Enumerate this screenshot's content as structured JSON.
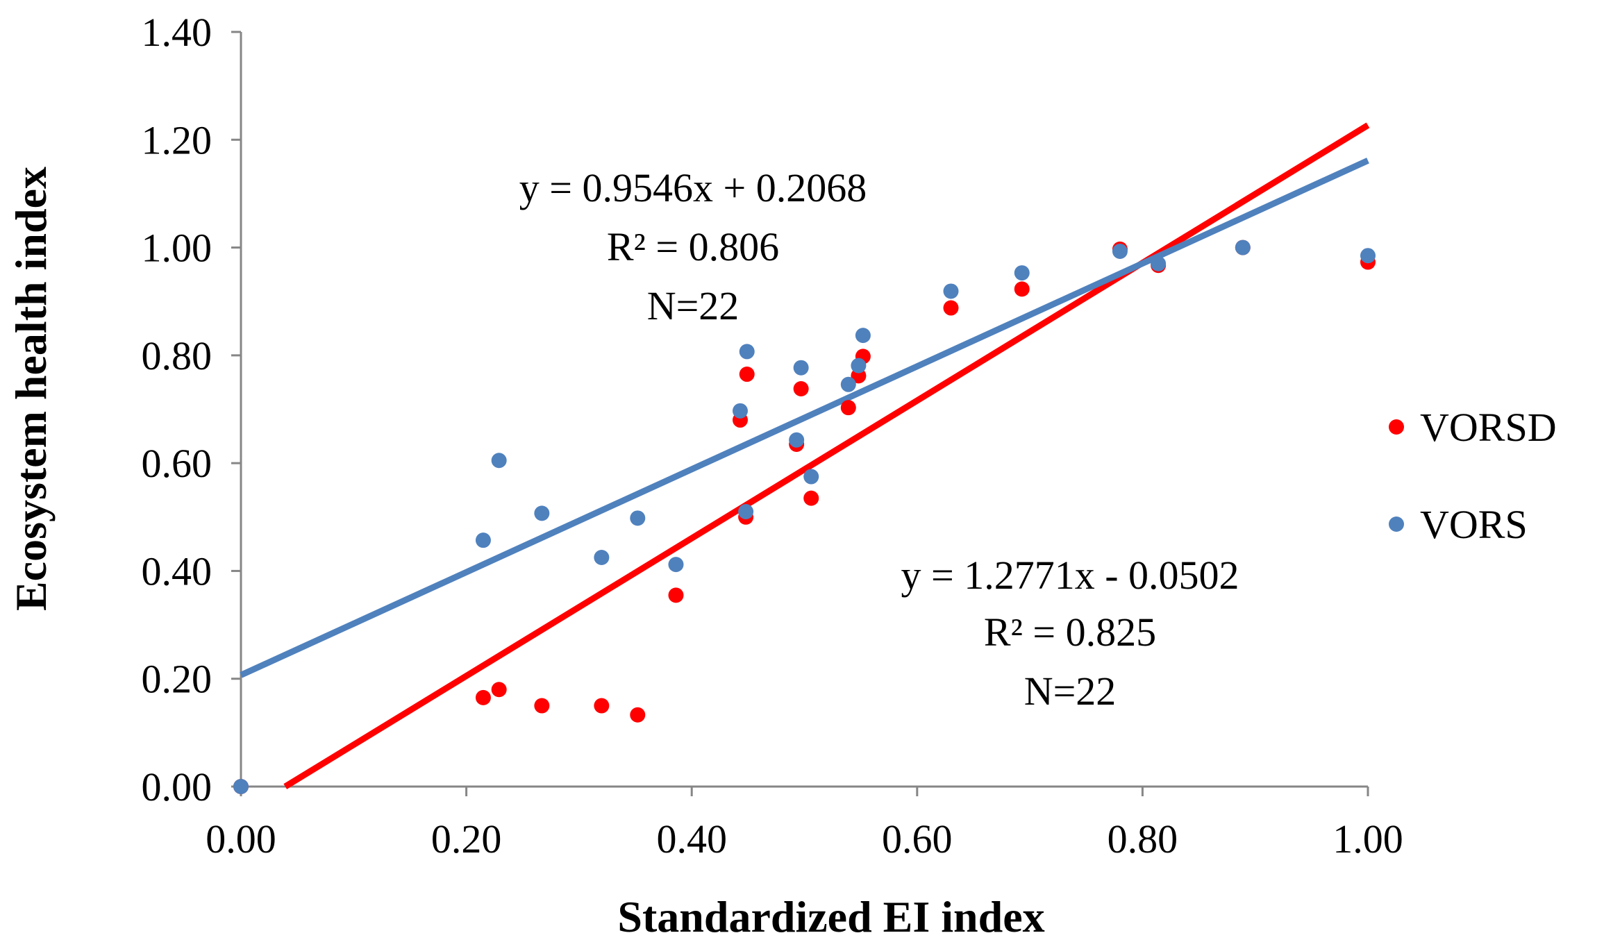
{
  "chart_data": {
    "type": "scatter",
    "title": "",
    "xlabel": "Standardized EI index",
    "ylabel": "Ecosystem health index",
    "xlim": [
      0,
      1.0
    ],
    "ylim": [
      0,
      1.4
    ],
    "grid": false,
    "x_ticks": [
      "0.00",
      "0.20",
      "0.40",
      "0.60",
      "0.80",
      "1.00"
    ],
    "y_ticks": [
      "0.00",
      "0.20",
      "0.40",
      "0.60",
      "0.80",
      "1.00",
      "1.20",
      "1.40"
    ],
    "legend_position": "right",
    "series": [
      {
        "name": "VORSD",
        "color": "#ff0000",
        "x": [
          0.0,
          0.215,
          0.229,
          0.267,
          0.32,
          0.352,
          0.386,
          0.443,
          0.449,
          0.448,
          0.493,
          0.497,
          0.506,
          0.539,
          0.548,
          0.552,
          0.63,
          0.693,
          0.78,
          0.814,
          0.889,
          1.0
        ],
        "y": [
          0.0,
          0.165,
          0.18,
          0.15,
          0.15,
          0.133,
          0.355,
          0.68,
          0.765,
          0.5,
          0.635,
          0.738,
          0.535,
          0.703,
          0.762,
          0.798,
          0.888,
          0.923,
          0.997,
          0.967,
          1.0,
          0.973
        ],
        "trendline": {
          "slope": 1.2771,
          "intercept": -0.0502
        },
        "annotation": [
          "y = 1.2771x - 0.0502",
          "R² = 0.825",
          "N=22"
        ]
      },
      {
        "name": "VORS",
        "color": "#4f81bd",
        "x": [
          0.0,
          0.215,
          0.229,
          0.267,
          0.32,
          0.352,
          0.386,
          0.443,
          0.449,
          0.448,
          0.493,
          0.497,
          0.506,
          0.539,
          0.548,
          0.552,
          0.63,
          0.693,
          0.78,
          0.814,
          0.889,
          1.0
        ],
        "y": [
          0.0,
          0.457,
          0.605,
          0.507,
          0.425,
          0.498,
          0.412,
          0.697,
          0.807,
          0.51,
          0.643,
          0.777,
          0.575,
          0.746,
          0.781,
          0.837,
          0.919,
          0.953,
          0.993,
          0.97,
          1.0,
          0.985
        ],
        "trendline": {
          "slope": 0.9546,
          "intercept": 0.2068
        },
        "annotation": [
          "y = 0.9546x + 0.2068",
          "R² = 0.806",
          "N=22"
        ]
      }
    ]
  }
}
